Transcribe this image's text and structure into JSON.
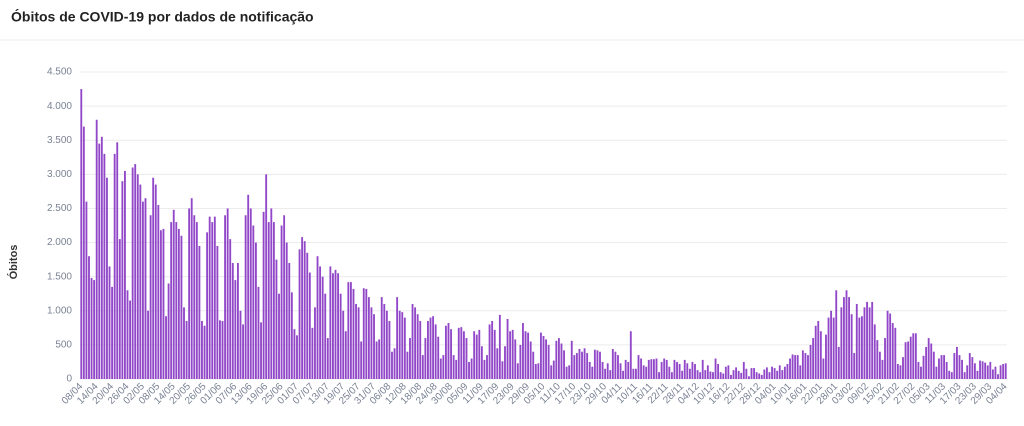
{
  "chart_data": {
    "type": "bar",
    "title": "Óbitos de COVID-19 por dados de notificação",
    "y_label": "Óbitos",
    "color": "#9147c8",
    "grid": true,
    "ylim": [
      0,
      4500
    ],
    "yticks": [
      0,
      500,
      {
        "value": 1000,
        "label": "1.000"
      },
      {
        "value": 1500,
        "label": "1.500"
      },
      {
        "value": 2000,
        "label": "2.000"
      },
      {
        "value": 2500,
        "label": "2.500"
      },
      {
        "value": 3000,
        "label": "3.000"
      },
      {
        "value": 3500,
        "label": "3.500"
      },
      {
        "value": 4000,
        "label": "4.000"
      },
      {
        "value": 4500,
        "label": "4.500"
      }
    ],
    "categories": [
      "08/04",
      null,
      null,
      null,
      null,
      null,
      "14/04",
      null,
      null,
      null,
      null,
      null,
      "20/04",
      null,
      null,
      null,
      null,
      null,
      "26/04",
      null,
      null,
      null,
      null,
      null,
      "02/05",
      null,
      null,
      null,
      null,
      null,
      "08/05",
      null,
      null,
      null,
      null,
      null,
      "14/05",
      null,
      null,
      null,
      null,
      null,
      "20/05",
      null,
      null,
      null,
      null,
      null,
      "26/05",
      null,
      null,
      null,
      null,
      null,
      "01/06",
      null,
      null,
      null,
      null,
      null,
      "07/06",
      null,
      null,
      null,
      null,
      null,
      "13/06",
      null,
      null,
      null,
      null,
      null,
      "19/06",
      null,
      null,
      null,
      null,
      null,
      "25/06",
      null,
      null,
      null,
      null,
      null,
      "01/07",
      null,
      null,
      null,
      null,
      null,
      "07/07",
      null,
      null,
      null,
      null,
      null,
      "13/07",
      null,
      null,
      null,
      null,
      null,
      "19/07",
      null,
      null,
      null,
      null,
      null,
      "25/07",
      null,
      null,
      null,
      null,
      null,
      "31/07",
      null,
      null,
      null,
      null,
      null,
      "06/08",
      null,
      null,
      null,
      null,
      null,
      "12/08",
      null,
      null,
      null,
      null,
      null,
      "18/08",
      null,
      null,
      null,
      null,
      null,
      "24/08",
      null,
      null,
      null,
      null,
      null,
      "30/08",
      null,
      null,
      null,
      null,
      null,
      "05/09",
      null,
      null,
      null,
      null,
      null,
      "11/09",
      null,
      null,
      null,
      null,
      null,
      "17/09",
      null,
      null,
      null,
      null,
      null,
      "23/09",
      null,
      null,
      null,
      null,
      null,
      "29/09",
      null,
      null,
      null,
      null,
      null,
      "05/10",
      null,
      null,
      null,
      null,
      null,
      "11/10",
      null,
      null,
      null,
      null,
      null,
      "17/10",
      null,
      null,
      null,
      null,
      null,
      "23/10",
      null,
      null,
      null,
      null,
      null,
      "29/10",
      null,
      null,
      null,
      null,
      null,
      "04/11",
      null,
      null,
      null,
      null,
      null,
      "10/11",
      null,
      null,
      null,
      null,
      null,
      "16/11",
      null,
      null,
      null,
      null,
      null,
      "22/11",
      null,
      null,
      null,
      null,
      null,
      "28/11",
      null,
      null,
      null,
      null,
      null,
      "04/12",
      null,
      null,
      null,
      null,
      null,
      "10/12",
      null,
      null,
      null,
      null,
      null,
      "16/12",
      null,
      null,
      null,
      null,
      null,
      "22/12",
      null,
      null,
      null,
      null,
      null,
      "28/12",
      null,
      null,
      null,
      null,
      null,
      "04/01",
      null,
      null,
      null,
      null,
      null,
      "10/01",
      null,
      null,
      null,
      null,
      null,
      "16/01",
      null,
      null,
      null,
      null,
      null,
      "22/01",
      null,
      null,
      null,
      null,
      null,
      "28/01",
      null,
      null,
      null,
      null,
      null,
      "03/02",
      null,
      null,
      null,
      null,
      null,
      "09/02",
      null,
      null,
      null,
      null,
      null,
      "15/02",
      null,
      null,
      null,
      null,
      null,
      "21/02",
      null,
      null,
      null,
      null,
      null,
      "27/02",
      null,
      null,
      null,
      null,
      null,
      "05/03",
      null,
      null,
      null,
      null,
      null,
      "11/03",
      null,
      null,
      null,
      null,
      null,
      "17/03",
      null,
      null,
      null,
      null,
      null,
      "23/03",
      null,
      null,
      null,
      null,
      null,
      "29/03",
      null,
      null,
      null,
      null,
      null,
      "04/04"
    ],
    "values": [
      4250,
      3700,
      2600,
      1800,
      1480,
      1450,
      3800,
      3450,
      3550,
      3300,
      2950,
      1650,
      1350,
      3300,
      3470,
      2050,
      2900,
      3050,
      1300,
      1150,
      3100,
      3150,
      3000,
      2850,
      2600,
      2650,
      1000,
      2400,
      2950,
      2850,
      2550,
      2180,
      2200,
      920,
      1400,
      2300,
      2480,
      2300,
      2200,
      2100,
      1050,
      850,
      2500,
      2650,
      2400,
      2300,
      1950,
      850,
      780,
      2150,
      2380,
      2300,
      2380,
      1950,
      860,
      850,
      2400,
      2500,
      2050,
      1700,
      1450,
      1700,
      1000,
      800,
      2400,
      2700,
      2500,
      2250,
      2000,
      1350,
      830,
      2450,
      3000,
      2300,
      2500,
      2300,
      1750,
      1250,
      2250,
      2400,
      2000,
      1700,
      1270,
      730,
      640,
      1900,
      2080,
      2020,
      1850,
      1560,
      750,
      1050,
      1800,
      1650,
      1500,
      1250,
      600,
      1650,
      1550,
      1600,
      1550,
      1250,
      1000,
      700,
      1420,
      1420,
      1320,
      1100,
      1050,
      550,
      1330,
      1320,
      1200,
      1050,
      950,
      550,
      580,
      1200,
      1100,
      1000,
      850,
      400,
      450,
      1200,
      1000,
      980,
      900,
      400,
      600,
      1100,
      1050,
      950,
      850,
      350,
      600,
      850,
      900,
      920,
      800,
      620,
      300,
      350,
      780,
      820,
      730,
      350,
      280,
      750,
      760,
      700,
      600,
      250,
      300,
      700,
      650,
      720,
      480,
      280,
      350,
      800,
      850,
      720,
      450,
      940,
      260,
      480,
      880,
      700,
      720,
      580,
      230,
      500,
      820,
      700,
      680,
      550,
      400,
      220,
      230,
      680,
      630,
      580,
      500,
      200,
      270,
      560,
      600,
      520,
      420,
      180,
      200,
      560,
      350,
      380,
      440,
      400,
      450,
      380,
      250,
      180,
      430,
      420,
      400,
      250,
      150,
      230,
      130,
      440,
      400,
      350,
      230,
      120,
      280,
      250,
      700,
      150,
      150,
      350,
      300,
      200,
      180,
      280,
      290,
      290,
      300,
      100,
      250,
      300,
      280,
      180,
      100,
      280,
      250,
      220,
      120,
      280,
      230,
      150,
      250,
      220,
      130,
      100,
      280,
      130,
      200,
      110,
      100,
      300,
      220,
      100,
      80,
      180,
      200,
      60,
      130,
      170,
      120,
      90,
      250,
      150,
      40,
      160,
      160,
      100,
      80,
      60,
      140,
      170,
      100,
      180,
      160,
      120,
      200,
      130,
      180,
      220,
      300,
      360,
      350,
      350,
      200,
      420,
      380,
      350,
      500,
      600,
      780,
      850,
      700,
      300,
      650,
      900,
      1000,
      900,
      1300,
      470,
      1050,
      1200,
      1300,
      1200,
      950,
      380,
      1100,
      900,
      920,
      1050,
      1130,
      1050,
      1130,
      800,
      570,
      400,
      280,
      600,
      1000,
      960,
      820,
      750,
      220,
      200,
      320,
      540,
      550,
      620,
      670,
      670,
      250,
      180,
      340,
      470,
      600,
      520,
      400,
      180,
      300,
      350,
      350,
      250,
      120,
      100,
      380,
      470,
      350,
      280,
      100,
      200,
      380,
      320,
      230,
      120,
      270,
      260,
      240,
      200,
      250,
      140,
      180,
      70,
      200,
      220,
      230
    ]
  }
}
